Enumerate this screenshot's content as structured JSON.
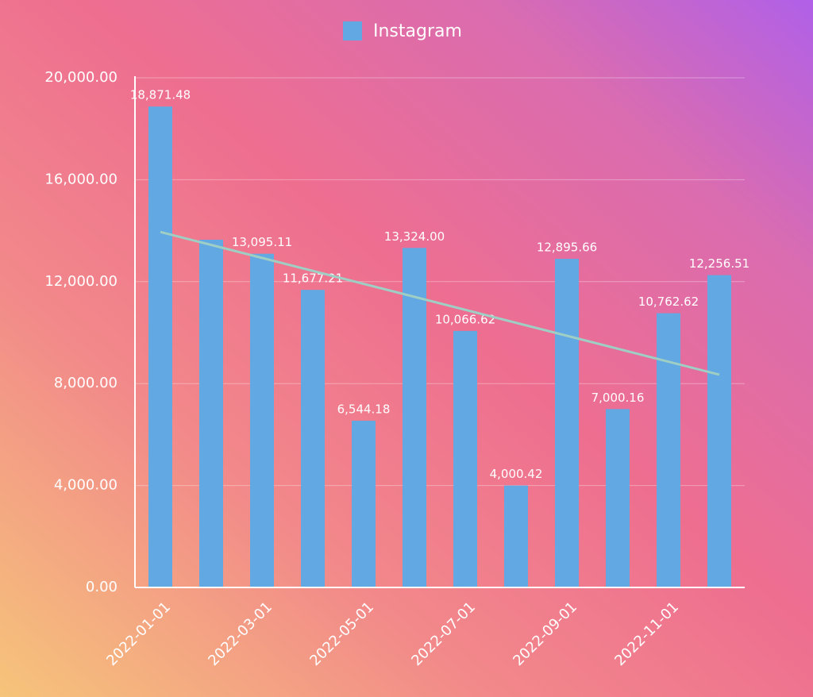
{
  "chart_data": {
    "type": "bar",
    "legend": {
      "position": "top"
    },
    "categories": [
      "2022-01-01",
      null,
      "2022-03-01",
      null,
      "2022-05-01",
      null,
      "2022-07-01",
      null,
      "2022-09-01",
      null,
      "2022-11-01",
      null
    ],
    "series": [
      {
        "name": "Instagram",
        "color": "#62a8e2",
        "values": [
          18871.48,
          13645,
          13095.11,
          11677.21,
          6544.18,
          13324.0,
          10066.62,
          4000.42,
          12895.66,
          7000.16,
          10762.62,
          12256.51
        ],
        "value_labels": [
          "18,871.48",
          null,
          "13,095.11",
          "11,677.21",
          "6,544.18",
          "13,324.00",
          "10,066.62",
          "4,000.42",
          "12,895.66",
          "7,000.16",
          "10,762.62",
          "12,256.51"
        ]
      }
    ],
    "trend_line": {
      "color": "#9fcfc4",
      "values": [
        13950,
        8350
      ]
    },
    "ylim": [
      0,
      20000
    ],
    "yticks": [
      {
        "value": 0,
        "label": "0.00"
      },
      {
        "value": 4000,
        "label": "4,000.00"
      },
      {
        "value": 8000,
        "label": "8,000.00"
      },
      {
        "value": 12000,
        "label": "12,000.00"
      },
      {
        "value": 16000,
        "label": "16,000.00"
      },
      {
        "value": 20000,
        "label": "20,000.00"
      }
    ],
    "grid": true
  }
}
